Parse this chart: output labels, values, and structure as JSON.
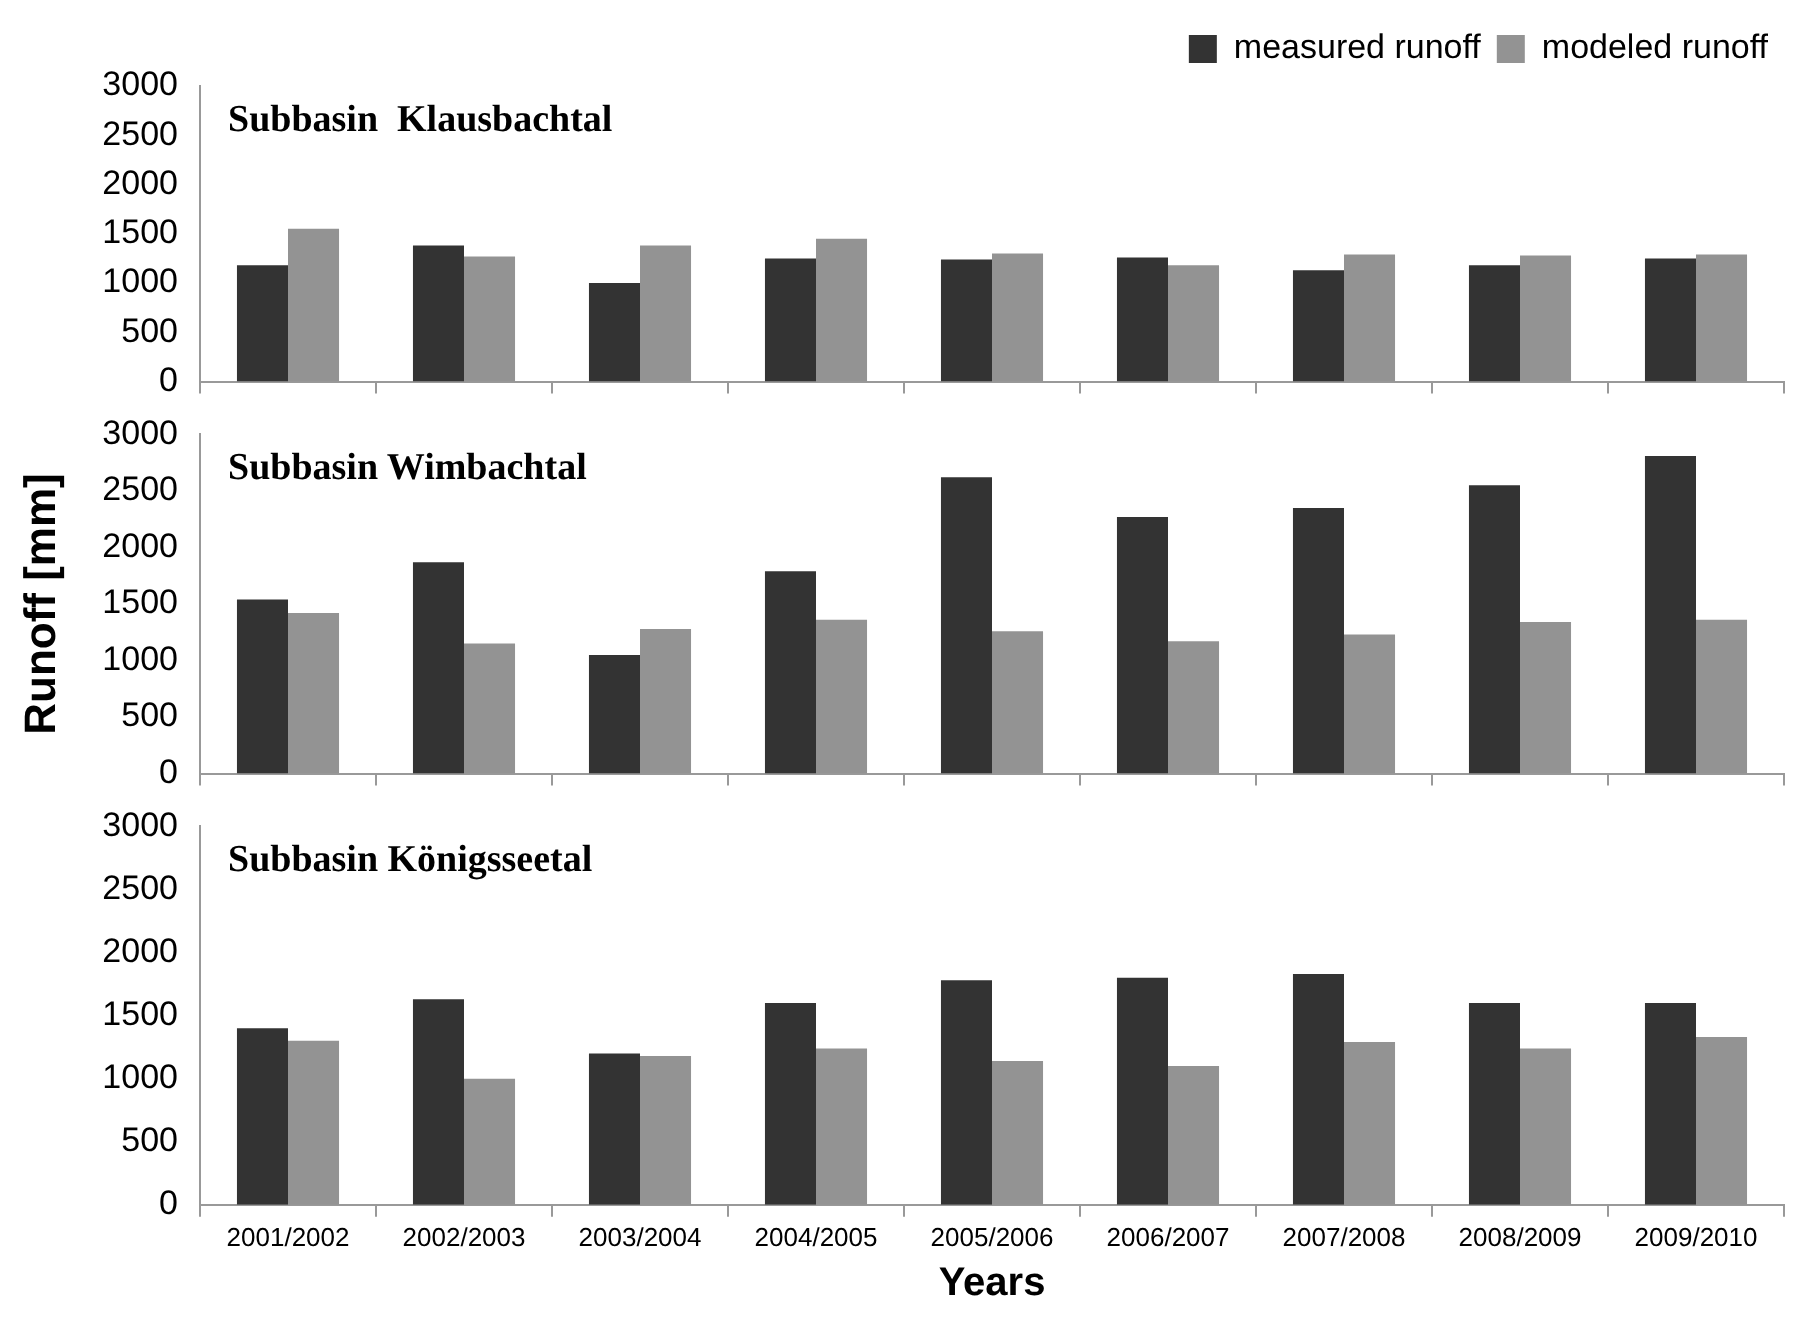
{
  "chart_data": [
    {
      "type": "bar",
      "title": "Subbasin  Klausbachtal",
      "categories": [
        null,
        null,
        null,
        null,
        null,
        null,
        null,
        null,
        null
      ],
      "series": [
        {
          "name": "measured runoff",
          "color": "#333333",
          "values": [
            1180,
            1380,
            1000,
            1250,
            1240,
            1260,
            1130,
            1180,
            1250
          ]
        },
        {
          "name": "modeled runoff",
          "color": "#939393",
          "values": [
            1550,
            1270,
            1380,
            1450,
            1300,
            1180,
            1290,
            1280,
            1290
          ]
        }
      ],
      "ylim": [
        0,
        3000
      ],
      "yticks": [
        0,
        500,
        1000,
        1500,
        2000,
        2500,
        3000
      ],
      "grid": false,
      "legend": "top right",
      "tick_labels": "y"
    },
    {
      "type": "bar",
      "title": "Subbasin Wimbachtal",
      "ylabel": "Runoff [mm]",
      "categories": [
        null,
        null,
        null,
        null,
        null,
        null,
        null,
        null,
        null
      ],
      "series": [
        {
          "color": "#333333",
          "values": [
            1540,
            1870,
            1050,
            1790,
            2620,
            2270,
            2350,
            2550,
            2810
          ]
        },
        {
          "color": "#939393",
          "values": [
            1420,
            1150,
            1280,
            1360,
            1260,
            1170,
            1230,
            1340,
            1360
          ]
        }
      ],
      "ylim": [
        0,
        3000
      ],
      "yticks": [
        0,
        500,
        1000,
        1500,
        2000,
        2500,
        3000
      ],
      "grid": false,
      "tick_labels": "y"
    },
    {
      "type": "bar",
      "title": "Subbasin Königsseetal",
      "xlabel": "Years",
      "categories": [
        "2001/2002",
        "2002/2003",
        "2003/2004",
        "2004/2005",
        "2005/2006",
        "2006/2007",
        "2007/2008",
        "2008/2009",
        "2009/2010"
      ],
      "series": [
        {
          "color": "#333333",
          "values": [
            1400,
            1630,
            1200,
            1600,
            1780,
            1800,
            1830,
            1600,
            1600
          ]
        },
        {
          "color": "#939393",
          "values": [
            1300,
            1000,
            1180,
            1240,
            1140,
            1100,
            1290,
            1240,
            1330
          ]
        }
      ],
      "ylim": [
        0,
        3000
      ],
      "yticks": [
        0,
        500,
        1000,
        1500,
        2000,
        2500,
        3000
      ],
      "grid": false
    }
  ]
}
